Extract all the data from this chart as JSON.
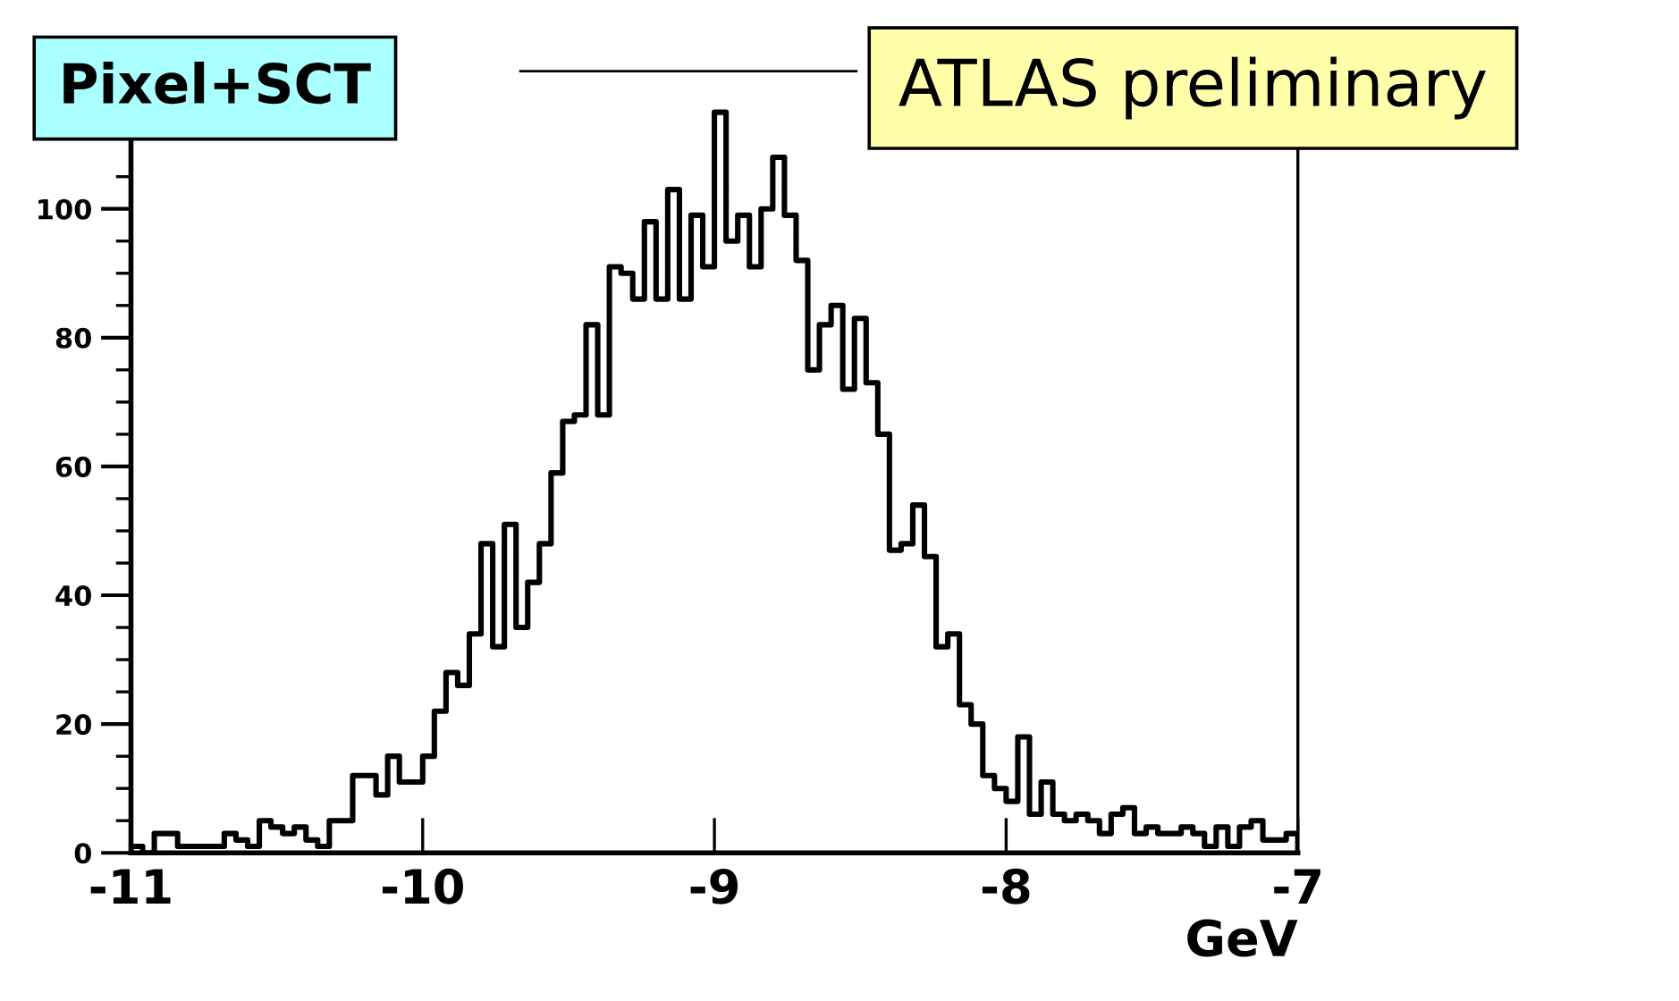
{
  "chart_data": {
    "type": "histogram",
    "annotations": [
      "Pixel+SCT",
      "ATLAS preliminary"
    ],
    "xlabel": "GeV",
    "bins": [
      -11,
      -10.96,
      -10.92,
      -10.88,
      -10.84,
      -10.8,
      -10.76,
      -10.72,
      -10.68,
      -10.64,
      -10.6,
      -10.56,
      -10.52,
      -10.48,
      -10.44,
      -10.4,
      -10.36,
      -10.32,
      -10.28,
      -10.24,
      -10.2,
      -10.16,
      -10.12,
      -10.08,
      -10.04,
      -10,
      -9.96,
      -9.92,
      -9.88,
      -9.84,
      -9.8,
      -9.76,
      -9.72,
      -9.68,
      -9.64,
      -9.6,
      -9.56,
      -9.52,
      -9.48,
      -9.44,
      -9.4,
      -9.36,
      -9.32,
      -9.28,
      -9.24,
      -9.2,
      -9.16,
      -9.12,
      -9.08,
      -9.04,
      -9,
      -8.96,
      -8.92,
      -8.88,
      -8.84,
      -8.8,
      -8.76,
      -8.72,
      -8.68,
      -8.64,
      -8.6,
      -8.56,
      -8.52,
      -8.48,
      -8.44,
      -8.4,
      -8.36,
      -8.32,
      -8.28,
      -8.24,
      -8.2,
      -8.16,
      -8.12,
      -8.08,
      -8.04,
      -8,
      -7.96,
      -7.92,
      -7.88,
      -7.84,
      -7.8,
      -7.76,
      -7.72,
      -7.68,
      -7.64,
      -7.6,
      -7.56,
      -7.52,
      -7.48,
      -7.44,
      -7.4,
      -7.36,
      -7.32,
      -7.28,
      -7.24,
      -7.2,
      -7.16,
      -7.12,
      -7.08,
      -7.04,
      -7
    ],
    "values": [
      1,
      0,
      3,
      3,
      1,
      1,
      1,
      1,
      3,
      2,
      1,
      5,
      4,
      3,
      4,
      2,
      1,
      5,
      5,
      12,
      12,
      9,
      15,
      11,
      11,
      15,
      22,
      28,
      26,
      34,
      48,
      32,
      51,
      35,
      42,
      48,
      59,
      67,
      68,
      82,
      68,
      91,
      90,
      86,
      98,
      86,
      103,
      86,
      99,
      91,
      115,
      95,
      99,
      91,
      100,
      108,
      99,
      92,
      75,
      82,
      85,
      72,
      83,
      73,
      65,
      47,
      48,
      54,
      46,
      32,
      34,
      23,
      20,
      12,
      10,
      8,
      18,
      6,
      11,
      6,
      5,
      6,
      5,
      3,
      6,
      7,
      3,
      4,
      3,
      3,
      4,
      3,
      1,
      4,
      1,
      4,
      5,
      2,
      2,
      3
    ],
    "color": "#000000",
    "xlim": [
      -11,
      -7
    ],
    "xticks": [
      -11,
      -10,
      -9,
      -8,
      -7
    ],
    "ylim": [
      0,
      120
    ],
    "yticks": [
      0,
      {
        "value": 5,
        "label": null
      },
      {
        "value": 10,
        "label": null
      },
      {
        "value": 15,
        "label": null
      },
      20,
      {
        "value": 25,
        "label": null
      },
      {
        "value": 30,
        "label": null
      },
      {
        "value": 35,
        "label": null
      },
      40,
      {
        "value": 45,
        "label": null
      },
      {
        "value": 50,
        "label": null
      },
      {
        "value": 55,
        "label": null
      },
      60,
      {
        "value": 65,
        "label": null
      },
      {
        "value": 70,
        "label": null
      },
      {
        "value": 75,
        "label": null
      },
      80,
      {
        "value": 85,
        "label": null
      },
      {
        "value": 90,
        "label": null
      },
      {
        "value": 95,
        "label": null
      },
      100,
      {
        "value": 105,
        "label": null
      }
    ],
    "grid": false
  }
}
